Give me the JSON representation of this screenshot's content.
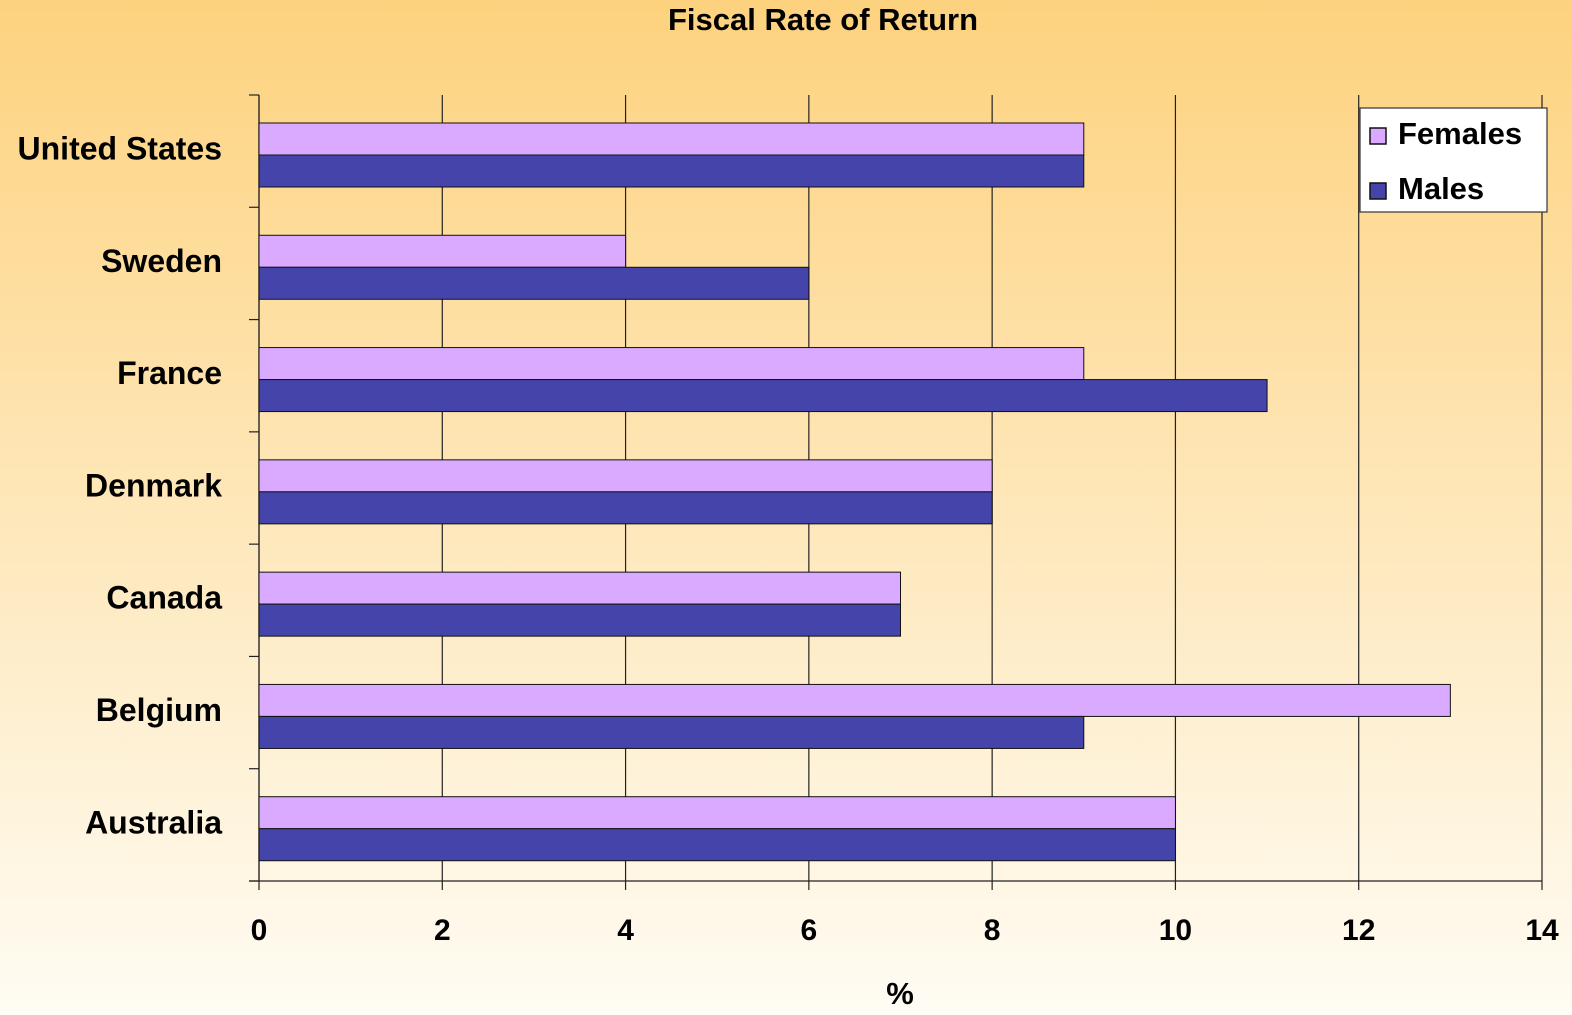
{
  "chart_data": {
    "type": "hbar",
    "title": "Fiscal Rate of Return",
    "x_label": "%",
    "categories": [
      "United States",
      "Sweden",
      "France",
      "Denmark",
      "Canada",
      "Belgium",
      "Australia"
    ],
    "series": [
      {
        "name": "Females",
        "color": "#d9aaff",
        "values": [
          9,
          4,
          9,
          8,
          7,
          13,
          10
        ]
      },
      {
        "name": "Males",
        "color": "#4444aa",
        "values": [
          9,
          6,
          11,
          8,
          7,
          9,
          10
        ]
      }
    ],
    "xlim": [
      0,
      14
    ],
    "xticks": [
      0,
      2,
      4,
      6,
      8,
      10,
      12,
      14
    ],
    "grid": true,
    "legend": "top-right"
  }
}
